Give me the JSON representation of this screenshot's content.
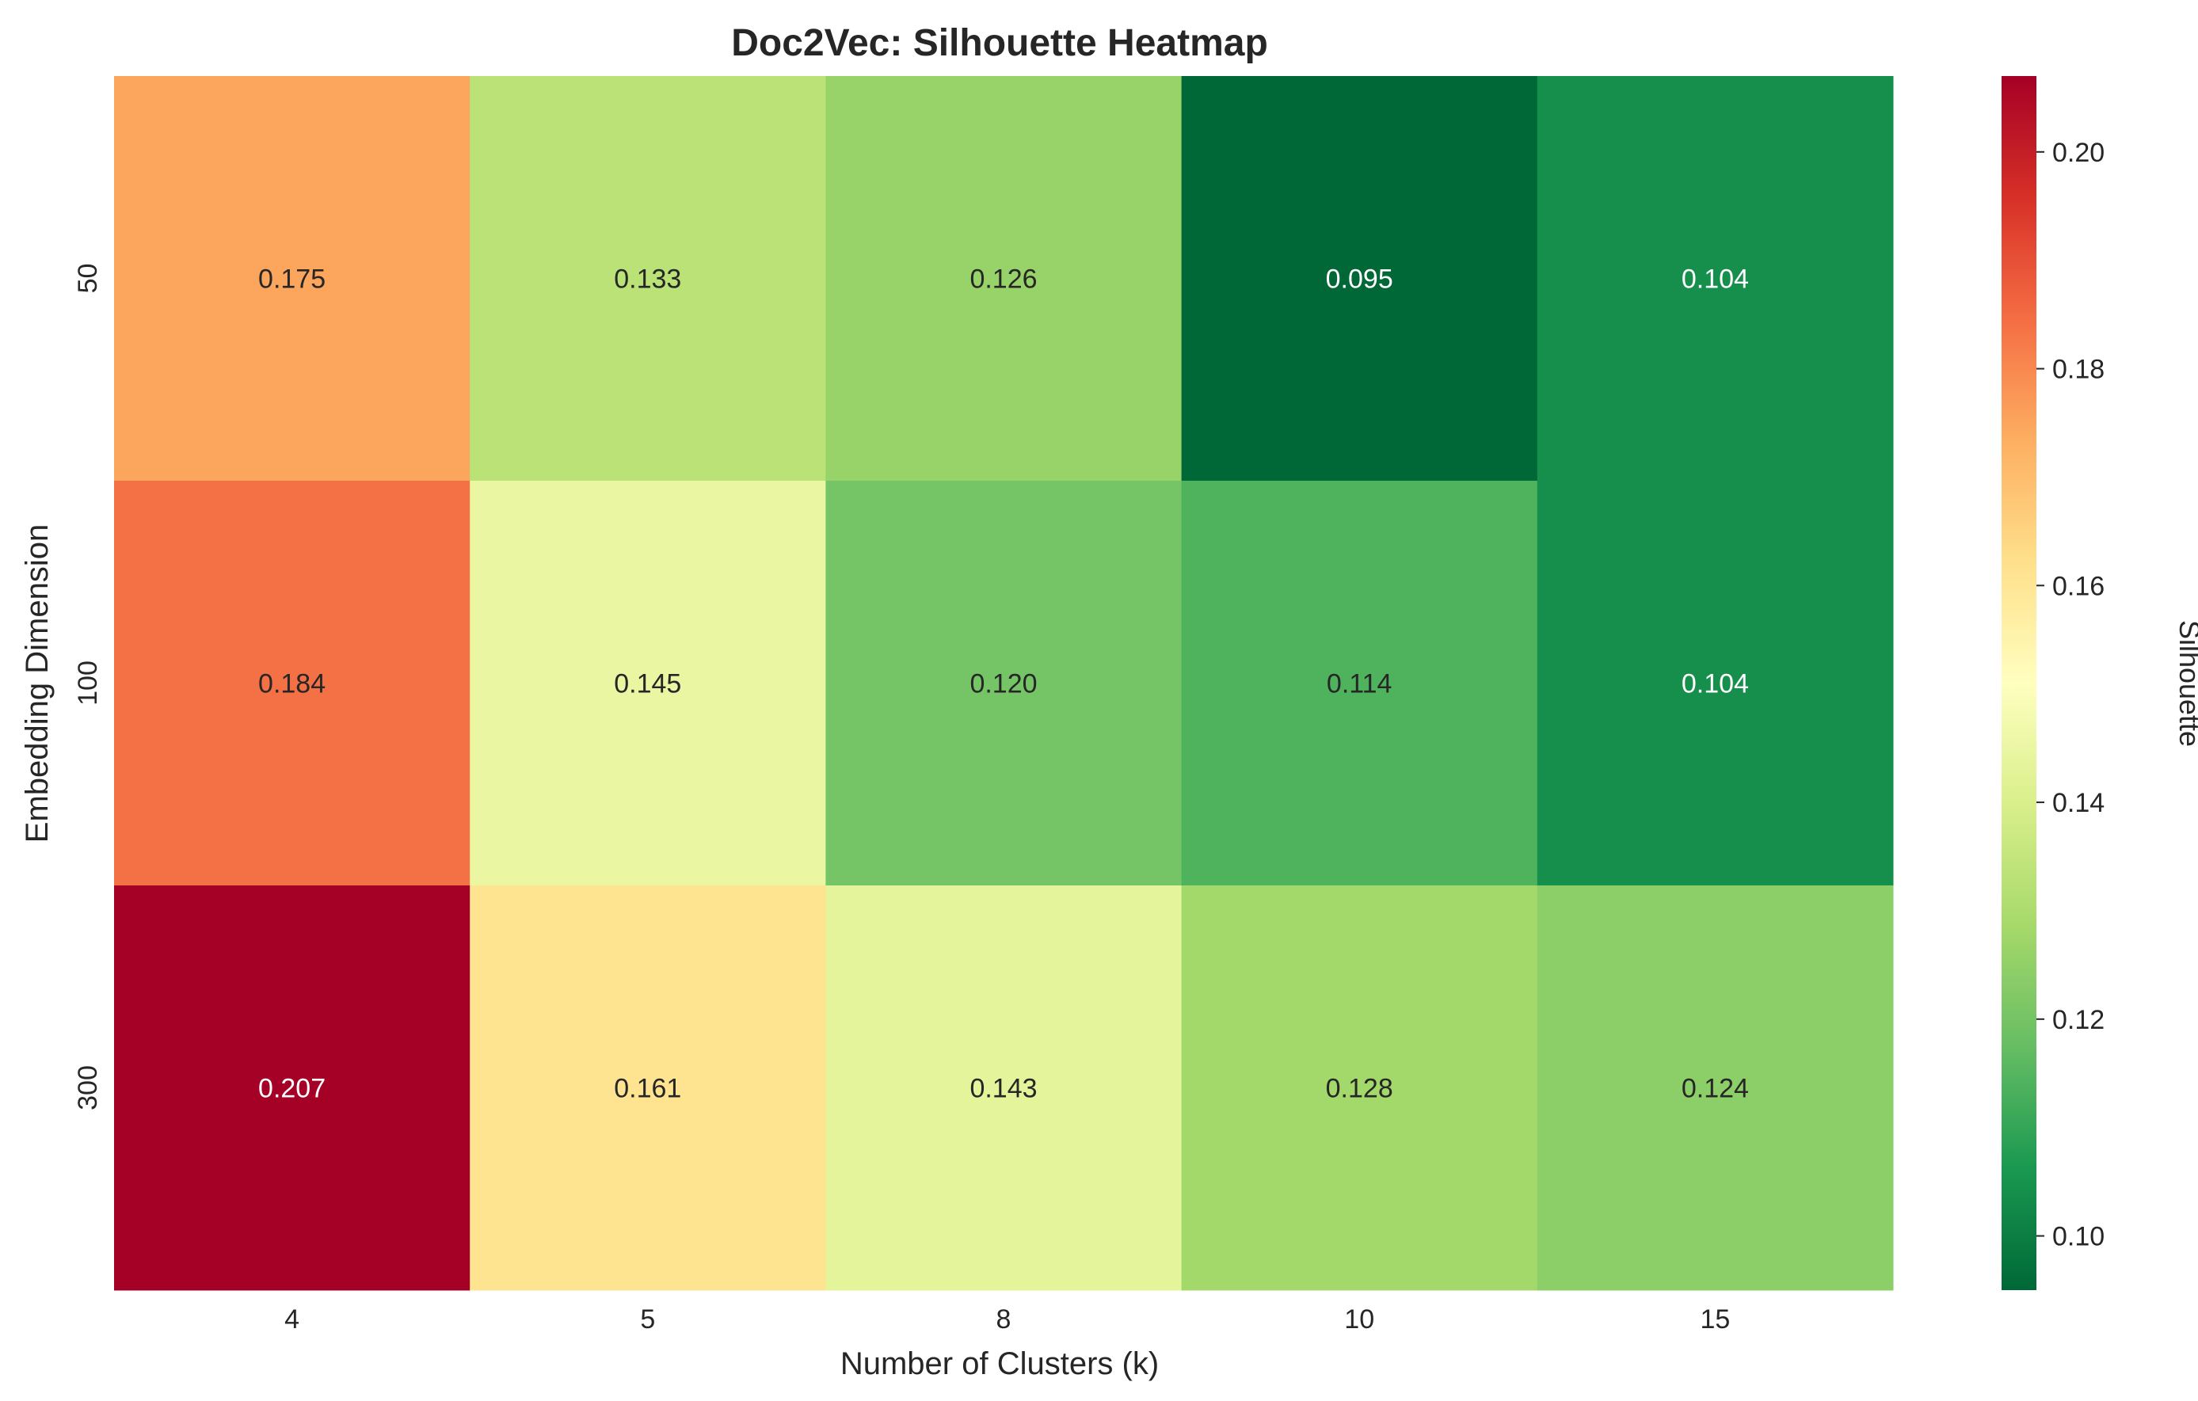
{
  "chart_data": {
    "type": "heatmap",
    "title": "Doc2Vec: Silhouette Heatmap",
    "xlabel": "Number of Clusters (k)",
    "ylabel": "Embedding Dimension",
    "x_categories": [
      "4",
      "5",
      "8",
      "10",
      "15"
    ],
    "y_categories": [
      "50",
      "100",
      "300"
    ],
    "values": [
      [
        0.175,
        0.133,
        0.126,
        0.095,
        0.104
      ],
      [
        0.184,
        0.145,
        0.12,
        0.114,
        0.104
      ],
      [
        0.207,
        0.161,
        0.143,
        0.128,
        0.124
      ]
    ],
    "value_labels": [
      [
        "0.175",
        "0.133",
        "0.126",
        "0.095",
        "0.104"
      ],
      [
        "0.184",
        "0.145",
        "0.120",
        "0.114",
        "0.104"
      ],
      [
        "0.207",
        "0.161",
        "0.143",
        "0.128",
        "0.124"
      ]
    ],
    "colorbar": {
      "label": "Silhouette",
      "colormap": "RdYlGn_r",
      "vmin": 0.095,
      "vmax": 0.207,
      "ticks": [
        "0.10",
        "0.12",
        "0.14",
        "0.16",
        "0.18",
        "0.20"
      ],
      "tick_values": [
        0.1,
        0.12,
        0.14,
        0.16,
        0.18,
        0.2
      ]
    },
    "grid": false
  }
}
